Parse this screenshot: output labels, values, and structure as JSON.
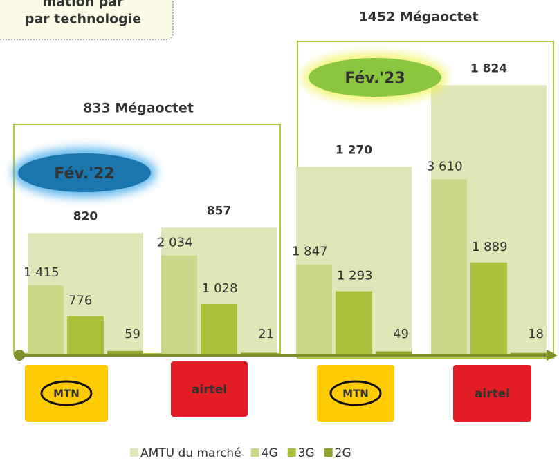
{
  "chart_data": {
    "type": "bar",
    "title": "mation par",
    "subtitle": "par technologie",
    "categories": [
      "MTN",
      "airtel",
      "MTN",
      "airtel"
    ],
    "periods": [
      {
        "label": "Fév.'22",
        "total": "833 Mégaoctet"
      },
      {
        "label": "Fév.'23",
        "total": "1452 Mégaoctet"
      }
    ],
    "series": [
      {
        "name": "AMTU du marché",
        "color": "#dfe6b8",
        "values": [
          820,
          857,
          1270,
          1824
        ],
        "value_labels": [
          "820",
          "857",
          "1 270",
          "1 824"
        ]
      },
      {
        "name": "4G",
        "color": "#cad987",
        "axis": "y2",
        "values": [
          1415,
          2034,
          1847,
          3610
        ],
        "value_labels": [
          "1 415",
          "2 034",
          "1 847",
          "3 610"
        ]
      },
      {
        "name": "3G",
        "color": "#abc03c",
        "axis": "y2",
        "values": [
          776,
          1028,
          1293,
          1889
        ],
        "value_labels": [
          "776",
          "1 028",
          "1 293",
          "1 889"
        ]
      },
      {
        "name": "2G",
        "color": "#8fa52c",
        "axis": "y2",
        "values": [
          59,
          21,
          49,
          18
        ]
      }
    ],
    "ylim": [
      0,
      2300
    ],
    "y2lim": [
      0,
      7000
    ]
  }
}
